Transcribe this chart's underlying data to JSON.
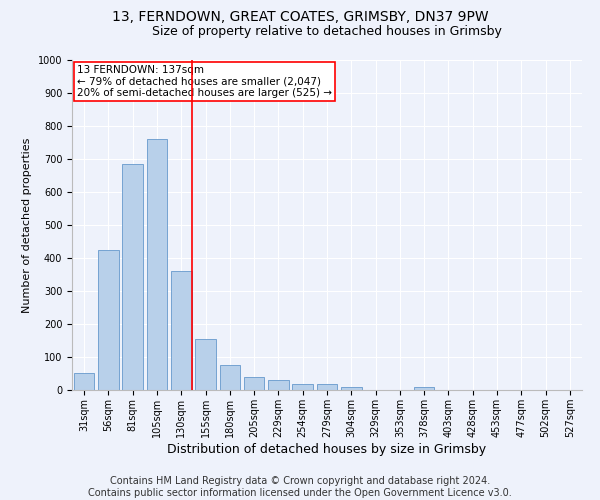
{
  "title1": "13, FERNDOWN, GREAT COATES, GRIMSBY, DN37 9PW",
  "title2": "Size of property relative to detached houses in Grimsby",
  "xlabel": "Distribution of detached houses by size in Grimsby",
  "ylabel": "Number of detached properties",
  "categories": [
    "31sqm",
    "56sqm",
    "81sqm",
    "105sqm",
    "130sqm",
    "155sqm",
    "180sqm",
    "205sqm",
    "229sqm",
    "254sqm",
    "279sqm",
    "304sqm",
    "329sqm",
    "353sqm",
    "378sqm",
    "403sqm",
    "428sqm",
    "453sqm",
    "477sqm",
    "502sqm",
    "527sqm"
  ],
  "values": [
    52,
    425,
    685,
    760,
    360,
    155,
    75,
    40,
    30,
    18,
    18,
    10,
    0,
    0,
    10,
    0,
    0,
    0,
    0,
    0,
    0
  ],
  "bar_color": "#b8d0ea",
  "bar_edge_color": "#6699cc",
  "vline_color": "red",
  "annotation_text": "13 FERNDOWN: 137sqm\n← 79% of detached houses are smaller (2,047)\n20% of semi-detached houses are larger (525) →",
  "annotation_box_color": "white",
  "annotation_box_edge": "red",
  "ylim": [
    0,
    1000
  ],
  "yticks": [
    0,
    100,
    200,
    300,
    400,
    500,
    600,
    700,
    800,
    900,
    1000
  ],
  "footer1": "Contains HM Land Registry data © Crown copyright and database right 2024.",
  "footer2": "Contains public sector information licensed under the Open Government Licence v3.0.",
  "background_color": "#eef2fb",
  "grid_color": "#ffffff",
  "title1_fontsize": 10,
  "title2_fontsize": 9,
  "xlabel_fontsize": 9,
  "ylabel_fontsize": 8,
  "footer_fontsize": 7,
  "tick_fontsize": 7,
  "annotation_fontsize": 7.5
}
